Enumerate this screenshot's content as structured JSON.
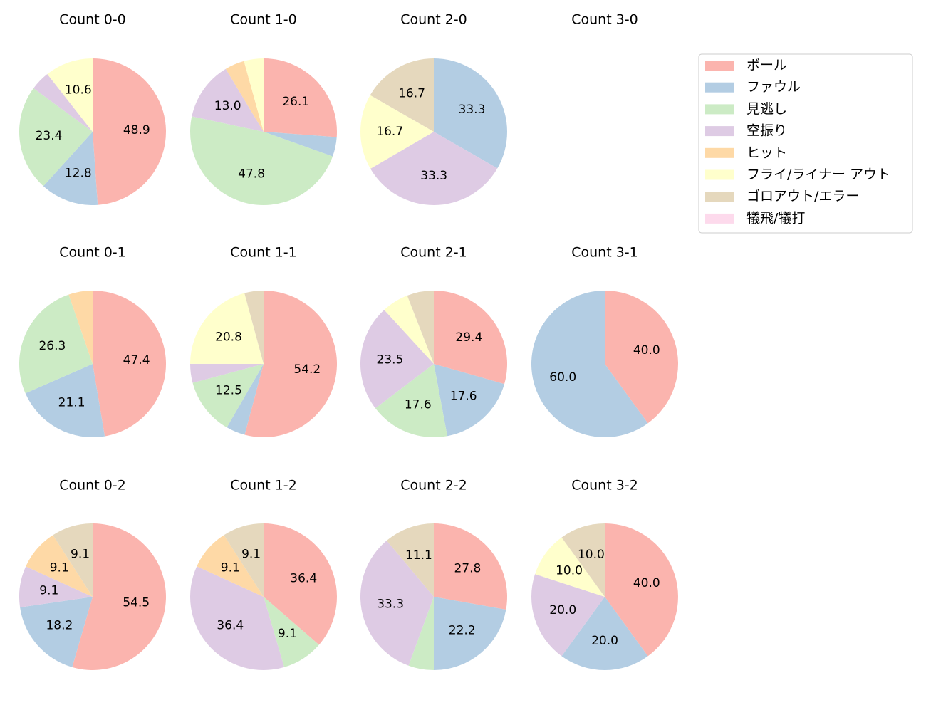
{
  "chart_data": [
    {
      "type": "pie",
      "title": "Count 0-0",
      "values": [
        48.9,
        12.8,
        23.4,
        4.3,
        null,
        10.6,
        null,
        null
      ],
      "value_labels": [
        "48.9",
        "12.8",
        "23.4",
        null,
        null,
        "10.6",
        null,
        null
      ]
    },
    {
      "type": "pie",
      "title": "Count 1-0",
      "values": [
        26.1,
        4.3,
        47.8,
        13.0,
        4.3,
        4.3,
        null,
        null
      ],
      "value_labels": [
        "26.1",
        null,
        "47.8",
        "13.0",
        null,
        null,
        null,
        null
      ]
    },
    {
      "type": "pie",
      "title": "Count 2-0",
      "values": [
        null,
        33.3,
        null,
        33.3,
        null,
        16.7,
        16.7,
        null
      ],
      "value_labels": [
        null,
        "33.3",
        null,
        "33.3",
        null,
        "16.7",
        "16.7",
        null
      ]
    },
    {
      "type": "pie",
      "title": "Count 3-0",
      "values": [
        null,
        null,
        null,
        null,
        null,
        null,
        null,
        null
      ],
      "value_labels": [
        null,
        null,
        null,
        null,
        null,
        null,
        null,
        null
      ]
    },
    {
      "type": "pie",
      "title": "Count 0-1",
      "values": [
        47.4,
        21.1,
        26.3,
        null,
        5.3,
        null,
        null,
        null
      ],
      "value_labels": [
        "47.4",
        "21.1",
        "26.3",
        null,
        null,
        null,
        null,
        null
      ]
    },
    {
      "type": "pie",
      "title": "Count 1-1",
      "values": [
        54.2,
        4.2,
        12.5,
        4.2,
        null,
        20.8,
        4.2,
        null
      ],
      "value_labels": [
        "54.2",
        null,
        "12.5",
        null,
        null,
        "20.8",
        null,
        null
      ]
    },
    {
      "type": "pie",
      "title": "Count 2-1",
      "values": [
        29.4,
        17.6,
        17.6,
        23.5,
        null,
        5.9,
        5.9,
        null
      ],
      "value_labels": [
        "29.4",
        "17.6",
        "17.6",
        "23.5",
        null,
        null,
        null,
        null
      ]
    },
    {
      "type": "pie",
      "title": "Count 3-1",
      "values": [
        40.0,
        60.0,
        null,
        null,
        null,
        null,
        null,
        null
      ],
      "value_labels": [
        "40.0",
        "60.0",
        null,
        null,
        null,
        null,
        null,
        null
      ]
    },
    {
      "type": "pie",
      "title": "Count 0-2",
      "values": [
        54.5,
        18.2,
        null,
        9.1,
        9.1,
        null,
        9.1,
        null
      ],
      "value_labels": [
        "54.5",
        "18.2",
        null,
        "9.1",
        "9.1",
        null,
        "9.1",
        null
      ]
    },
    {
      "type": "pie",
      "title": "Count 1-2",
      "values": [
        36.4,
        null,
        9.1,
        36.4,
        9.1,
        null,
        9.1,
        null
      ],
      "value_labels": [
        "36.4",
        null,
        "9.1",
        "36.4",
        "9.1",
        null,
        "9.1",
        null
      ]
    },
    {
      "type": "pie",
      "title": "Count 2-2",
      "values": [
        27.8,
        22.2,
        5.6,
        33.3,
        null,
        null,
        11.1,
        null
      ],
      "value_labels": [
        "27.8",
        "22.2",
        null,
        "33.3",
        null,
        null,
        "11.1",
        null
      ]
    },
    {
      "type": "pie",
      "title": "Count 3-2",
      "values": [
        40.0,
        20.0,
        null,
        20.0,
        null,
        10.0,
        10.0,
        null
      ],
      "value_labels": [
        "40.0",
        "20.0",
        null,
        "20.0",
        null,
        "10.0",
        "10.0",
        null
      ]
    }
  ],
  "legend": {
    "labels": [
      "ボール",
      "ファウル",
      "見逃し",
      "空振り",
      "ヒット",
      "フライ/ライナー アウト",
      "ゴロアウト/エラー",
      "犠飛/犠打"
    ],
    "colors": [
      "#fbb4ae",
      "#b3cde3",
      "#ccebc5",
      "#decbe4",
      "#fed9a6",
      "#ffffcc",
      "#e5d8bd",
      "#fddaec"
    ]
  }
}
